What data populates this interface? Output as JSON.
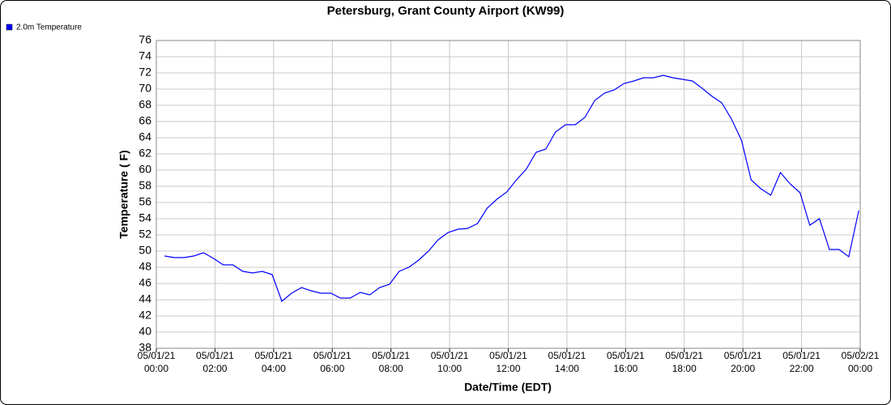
{
  "chart_data": {
    "type": "line",
    "title": "Petersburg, Grant County Airport (KW99)",
    "xlabel": "Date/Time (EDT)",
    "ylabel": "Temperature ( F)",
    "x": [
      0.28,
      0.61,
      0.95,
      1.28,
      1.61,
      1.95,
      2.28,
      2.61,
      2.95,
      3.28,
      3.61,
      3.95,
      4.28,
      4.61,
      4.95,
      5.28,
      5.61,
      5.95,
      6.28,
      6.61,
      6.95,
      7.28,
      7.61,
      7.95,
      8.28,
      8.61,
      8.95,
      9.28,
      9.61,
      9.95,
      10.28,
      10.61,
      10.95,
      11.28,
      11.61,
      11.95,
      12.28,
      12.61,
      12.95,
      13.28,
      13.61,
      13.95,
      14.28,
      14.61,
      14.95,
      15.28,
      15.61,
      15.95,
      16.28,
      16.61,
      16.95,
      17.28,
      17.61,
      17.95,
      18.28,
      18.61,
      18.95,
      19.28,
      19.61,
      19.95,
      20.28,
      20.61,
      20.95,
      21.28,
      21.61,
      21.95,
      22.28,
      22.61,
      22.95,
      23.28,
      23.61,
      23.95
    ],
    "series": [
      {
        "name": "2.0m Temperature",
        "color": "#0000ff",
        "values": [
          49.4,
          49.2,
          49.2,
          49.4,
          49.8,
          49.1,
          48.3,
          48.3,
          47.5,
          47.3,
          47.5,
          47.1,
          43.8,
          44.8,
          45.5,
          45.1,
          44.8,
          44.8,
          44.2,
          44.2,
          44.9,
          44.6,
          45.5,
          45.9,
          47.5,
          48.0,
          48.9,
          50.0,
          51.4,
          52.3,
          52.7,
          52.8,
          53.4,
          55.3,
          56.4,
          57.3,
          58.8,
          60.1,
          62.2,
          62.6,
          64.7,
          65.6,
          65.6,
          66.5,
          68.6,
          69.5,
          69.9,
          70.7,
          71.0,
          71.4,
          71.4,
          71.7,
          71.4,
          71.2,
          71.0,
          70.1,
          69.1,
          68.3,
          66.3,
          63.7,
          58.8,
          57.7,
          56.9,
          59.7,
          58.3,
          57.2,
          53.2,
          54.0,
          50.2,
          50.2,
          49.3,
          55.0
        ]
      }
    ],
    "xlim": [
      0,
      24
    ],
    "xticks": [
      {
        "value": 0,
        "label": [
          "05/01/21",
          "00:00"
        ]
      },
      {
        "value": 2,
        "label": [
          "05/01/21",
          "02:00"
        ]
      },
      {
        "value": 4,
        "label": [
          "05/01/21",
          "04:00"
        ]
      },
      {
        "value": 6,
        "label": [
          "05/01/21",
          "06:00"
        ]
      },
      {
        "value": 8,
        "label": [
          "05/01/21",
          "08:00"
        ]
      },
      {
        "value": 10,
        "label": [
          "05/01/21",
          "10:00"
        ]
      },
      {
        "value": 12,
        "label": [
          "05/01/21",
          "12:00"
        ]
      },
      {
        "value": 14,
        "label": [
          "05/01/21",
          "14:00"
        ]
      },
      {
        "value": 16,
        "label": [
          "05/01/21",
          "16:00"
        ]
      },
      {
        "value": 18,
        "label": [
          "05/01/21",
          "18:00"
        ]
      },
      {
        "value": 20,
        "label": [
          "05/01/21",
          "20:00"
        ]
      },
      {
        "value": 22,
        "label": [
          "05/01/21",
          "22:00"
        ]
      },
      {
        "value": 24,
        "label": [
          "05/02/21",
          "00:00"
        ]
      }
    ],
    "ylim": [
      38,
      76
    ],
    "yticks": [
      38,
      40,
      42,
      44,
      46,
      48,
      50,
      52,
      54,
      56,
      58,
      60,
      62,
      64,
      66,
      68,
      70,
      72,
      74,
      76
    ],
    "grid": true
  }
}
